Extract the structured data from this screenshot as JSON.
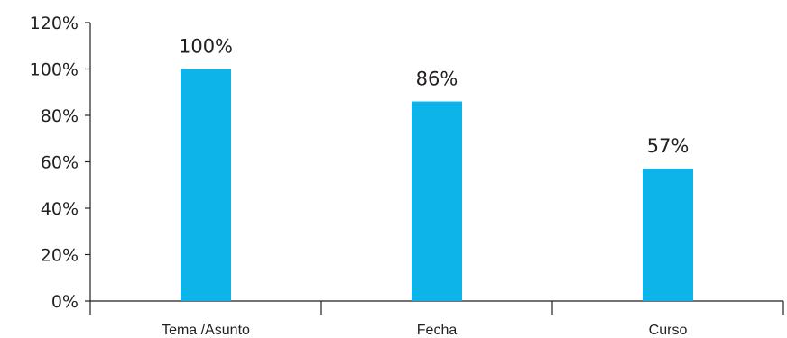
{
  "chart_data": {
    "type": "bar",
    "title": "",
    "xlabel": "",
    "ylabel": "",
    "categories": [
      "Tema /Asunto",
      "Fecha",
      "Curso"
    ],
    "values": [
      100,
      86,
      57
    ],
    "data_labels": [
      "100%",
      "86%",
      "57%"
    ],
    "ylim": [
      0,
      120
    ],
    "yticks": [
      0,
      20,
      40,
      60,
      80,
      100,
      120
    ],
    "ytick_labels": [
      "0%",
      "20%",
      "40%",
      "60%",
      "80%",
      "100%",
      "120%"
    ],
    "bar_color": "#0db4ea",
    "grid": false,
    "legend": "none"
  }
}
